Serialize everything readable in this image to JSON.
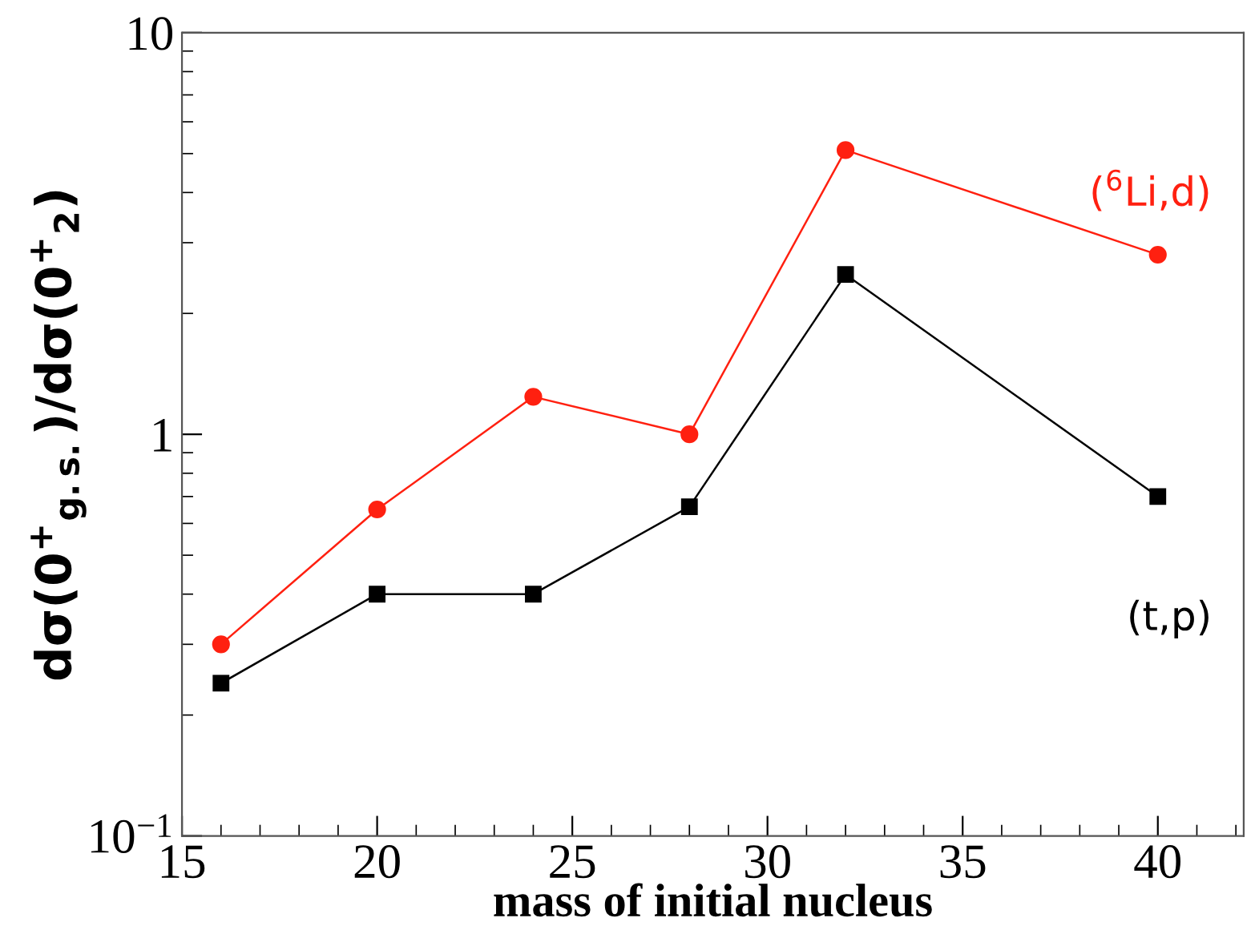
{
  "chart_data": {
    "type": "line",
    "xlabel": "mass of initial nucleus",
    "ylabel": "dσ(0$^{+}$$_{g.s.}$)/dσ(0$^{+}$$_{2}$)",
    "x": [
      16,
      20,
      24,
      28,
      32,
      40
    ],
    "series": [
      {
        "name": "($^{6}$Li,d)",
        "color": "#ff2010",
        "marker": "circle",
        "values": [
          0.3,
          0.65,
          1.24,
          1.0,
          5.1,
          2.8
        ]
      },
      {
        "name": "(t,p)",
        "color": "#000000",
        "marker": "square",
        "values": [
          0.24,
          0.4,
          0.4,
          0.66,
          2.5,
          0.7
        ]
      }
    ],
    "log": "y",
    "xlim": [
      15,
      42.2
    ],
    "xticks": [
      15,
      20,
      25,
      30,
      35,
      40
    ],
    "ylim": [
      0.1,
      10
    ],
    "yticks": [
      {
        "value": 0.1,
        "label": "10$^{−1}$"
      },
      1,
      10
    ],
    "grid": false,
    "legend": false,
    "line_style": "solid"
  }
}
